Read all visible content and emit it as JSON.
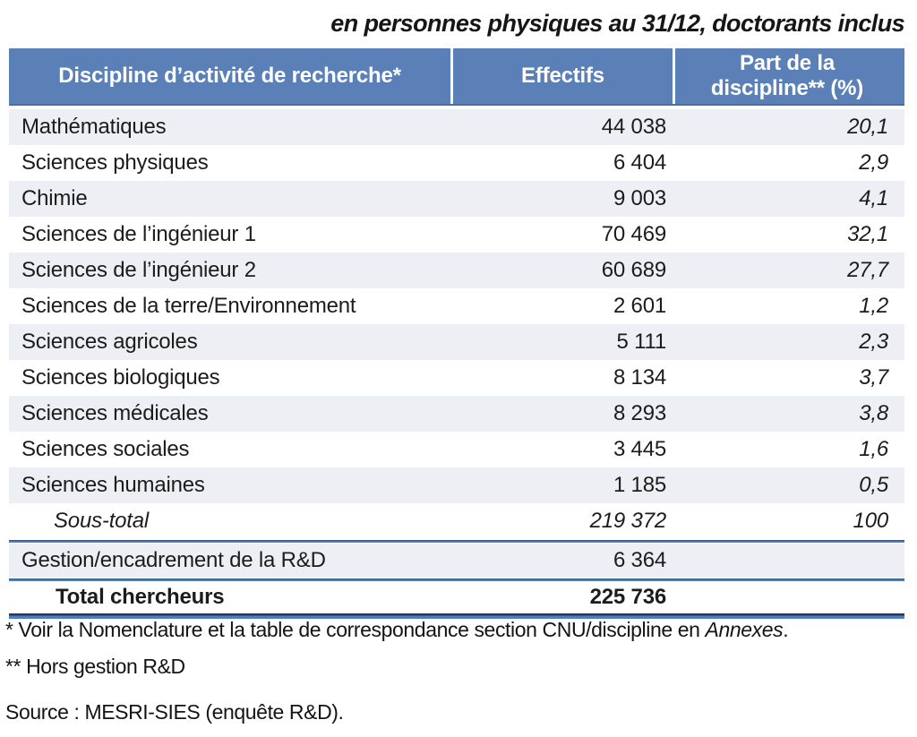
{
  "title": "en personnes physiques au 31/12, doctorants inclus",
  "table": {
    "columns": {
      "discipline": "Discipline d’activité de recherche*",
      "effectifs": "Effectifs",
      "part": "Part de la discipline** (%)"
    },
    "rows": [
      {
        "label": "Mathématiques",
        "effectifs": "44 038",
        "part": "20,1"
      },
      {
        "label": "Sciences physiques",
        "effectifs": "6 404",
        "part": "2,9"
      },
      {
        "label": "Chimie",
        "effectifs": "9 003",
        "part": "4,1"
      },
      {
        "label": "Sciences de l’ingénieur 1",
        "effectifs": "70 469",
        "part": "32,1"
      },
      {
        "label": "Sciences de l’ingénieur 2",
        "effectifs": "60 689",
        "part": "27,7"
      },
      {
        "label": "Sciences de la terre/Environnement",
        "effectifs": "2 601",
        "part": "1,2"
      },
      {
        "label": "Sciences agricoles",
        "effectifs": "5 111",
        "part": "2,3"
      },
      {
        "label": "Sciences biologiques",
        "effectifs": "8 134",
        "part": "3,7"
      },
      {
        "label": "Sciences médicales",
        "effectifs": "8 293",
        "part": "3,8"
      },
      {
        "label": "Sciences sociales",
        "effectifs": "3 445",
        "part": "1,6"
      },
      {
        "label": "Sciences humaines",
        "effectifs": "1 185",
        "part": "0,5"
      }
    ],
    "subtotal": {
      "label": "Sous-total",
      "effectifs": "219 372",
      "part": "100"
    },
    "gestion": {
      "label": "Gestion/encadrement de la R&D",
      "effectifs": "6 364",
      "part": ""
    },
    "total": {
      "label": "Total chercheurs",
      "effectifs": "225 736",
      "part": ""
    }
  },
  "footnotes": {
    "note1_prefix": "* Voir la Nomenclature et la table de correspondance section CNU/discipline en ",
    "note1_italic": "Annexes",
    "note1_suffix": ".",
    "note2": "** Hors gestion R&D",
    "source": "Source : MESRI-SIES (enquête R&D)."
  },
  "colors": {
    "header_bg": "#5b80b8",
    "header_text": "#ffffff",
    "row_alt": "#edeff5",
    "line": "#4d7ebd",
    "line_dark": "#1f3864",
    "text": "#1c1c1c"
  },
  "chart_data": {
    "type": "table",
    "title": "en personnes physiques au 31/12, doctorants inclus",
    "columns": [
      "Discipline d’activité de recherche*",
      "Effectifs",
      "Part de la discipline** (%)"
    ],
    "categories": [
      "Mathématiques",
      "Sciences physiques",
      "Chimie",
      "Sciences de l’ingénieur 1",
      "Sciences de l’ingénieur 2",
      "Sciences de la terre/Environnement",
      "Sciences agricoles",
      "Sciences biologiques",
      "Sciences médicales",
      "Sciences sociales",
      "Sciences humaines"
    ],
    "series": [
      {
        "name": "Effectifs",
        "values": [
          44038,
          6404,
          9003,
          70469,
          60689,
          2601,
          5111,
          8134,
          8293,
          3445,
          1185
        ]
      },
      {
        "name": "Part de la discipline (%)",
        "values": [
          20.1,
          2.9,
          4.1,
          32.1,
          27.7,
          1.2,
          2.3,
          3.7,
          3.8,
          1.6,
          0.5
        ]
      }
    ],
    "subtotal": {
      "label": "Sous-total",
      "effectifs": 219372,
      "part": 100
    },
    "extra_rows": [
      {
        "label": "Gestion/encadrement de la R&D",
        "effectifs": 6364
      }
    ],
    "total": {
      "label": "Total chercheurs",
      "effectifs": 225736
    }
  }
}
